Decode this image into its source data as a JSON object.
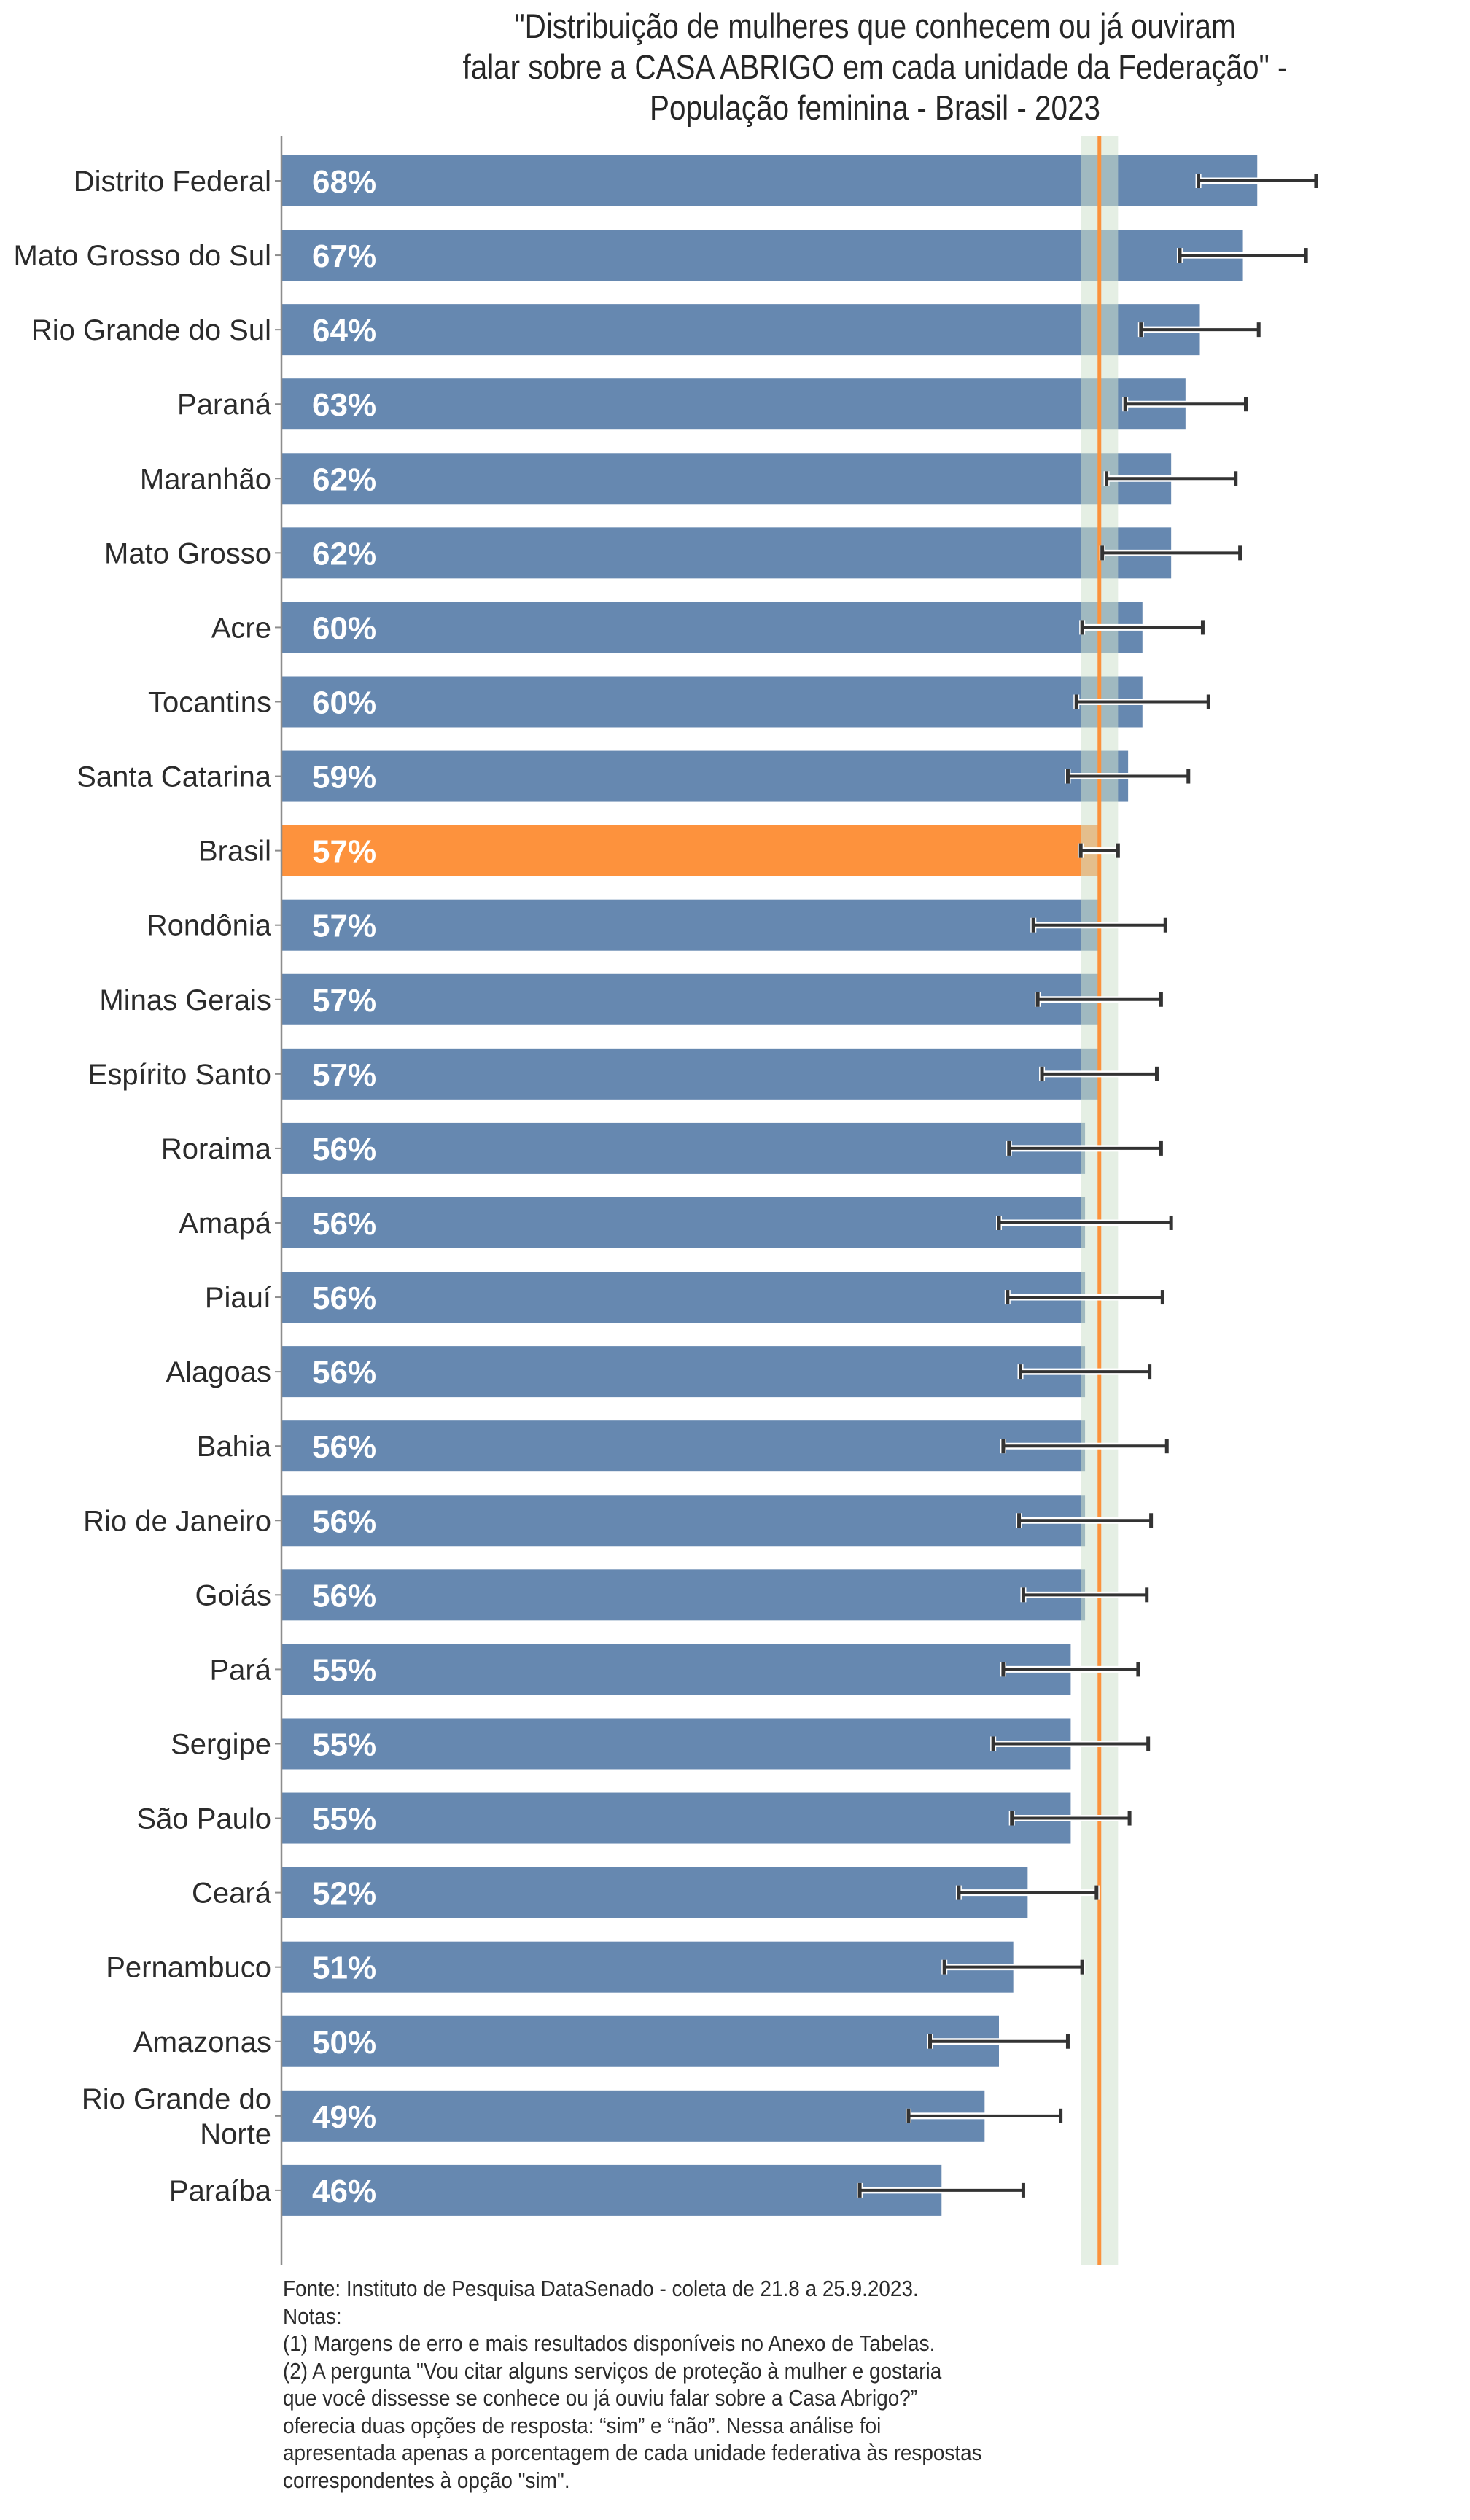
{
  "chart_data": {
    "type": "bar",
    "orientation": "horizontal",
    "title": "\"Distribuição de mulheres que conhecem ou já ouviram falar sobre a CASA ABRIGO em cada unidade da Federação\" - População feminina - Brasil - 2023",
    "title_lines": [
      "\"Distribuição de mulheres que conhecem ou já ouviram",
      "falar sobre a CASA ABRIGO em cada unidade da Federação\" -",
      "População feminina - Brasil - 2023"
    ],
    "xlabel": "",
    "ylabel": "",
    "xlim": [
      0,
      100
    ],
    "grid": false,
    "legend": "none",
    "value_suffix": "%",
    "categories": [
      "Distrito Federal",
      "Mato Grosso do Sul",
      "Rio Grande do Sul",
      "Paraná",
      "Maranhão",
      "Mato Grosso",
      "Acre",
      "Tocantins",
      "Santa Catarina",
      "Brasil",
      "Rondônia",
      "Minas Gerais",
      "Espírito Santo",
      "Roraima",
      "Amapá",
      "Piauí",
      "Alagoas",
      "Bahia",
      "Rio de Janeiro",
      "Goiás",
      "Pará",
      "Sergipe",
      "São Paulo",
      "Ceará",
      "Pernambuco",
      "Amazonas",
      "Rio Grande do Norte",
      "Paraíba"
    ],
    "category_label_lines": {
      "Rio Grande do Norte": [
        "Rio Grande do",
        "Norte"
      ]
    },
    "values": [
      68,
      67,
      64,
      63,
      62,
      62,
      60,
      60,
      59,
      57,
      57,
      57,
      57,
      56,
      56,
      56,
      56,
      56,
      56,
      56,
      55,
      55,
      55,
      52,
      51,
      50,
      49,
      46
    ],
    "error_low": [
      63.9,
      62.6,
      59.9,
      58.8,
      57.5,
      57.2,
      55.8,
      55.4,
      54.8,
      55.7,
      52.4,
      52.7,
      53.0,
      50.7,
      50.0,
      50.6,
      51.5,
      50.3,
      51.4,
      51.7,
      50.3,
      49.6,
      50.9,
      47.2,
      46.2,
      45.2,
      43.7,
      40.3
    ],
    "error_high": [
      72.1,
      71.4,
      68.1,
      67.2,
      66.5,
      66.8,
      64.2,
      64.6,
      63.2,
      58.3,
      61.6,
      61.3,
      61.0,
      61.3,
      62.0,
      61.4,
      60.5,
      61.7,
      60.6,
      60.3,
      59.7,
      60.4,
      59.1,
      56.8,
      55.8,
      54.8,
      54.3,
      51.7
    ],
    "highlight_category": "Brasil",
    "reference_line": {
      "label": "Brasil",
      "value": 57
    },
    "reference_band": {
      "low": 55.7,
      "high": 58.3
    },
    "colors": {
      "bar": "#6688b0",
      "highlight_bar": "#fd923d",
      "reference_line": "#fb923c",
      "reference_band": "#cfe1cd",
      "error_bar": "#333333",
      "category_text": "#2b2b2b",
      "value_text": "#ffffff"
    }
  },
  "notes": [
    "Fonte: Instituto de Pesquisa DataSenado - coleta de 21.8 a 25.9.2023.",
    "Notas:",
    "(1) Margens de erro e mais resultados disponíveis no Anexo de Tabelas.",
    "(2) A pergunta \"Vou citar alguns serviços de proteção à mulher e gostaria",
    "que você dissesse se conhece ou já ouviu falar sobre a Casa Abrigo?”",
    "oferecia duas opções de resposta: “sim” e “não”. Nessa análise foi",
    "apresentada apenas a porcentagem de cada unidade federativa às respostas",
    "correspondentes à opção \"sim\"."
  ]
}
